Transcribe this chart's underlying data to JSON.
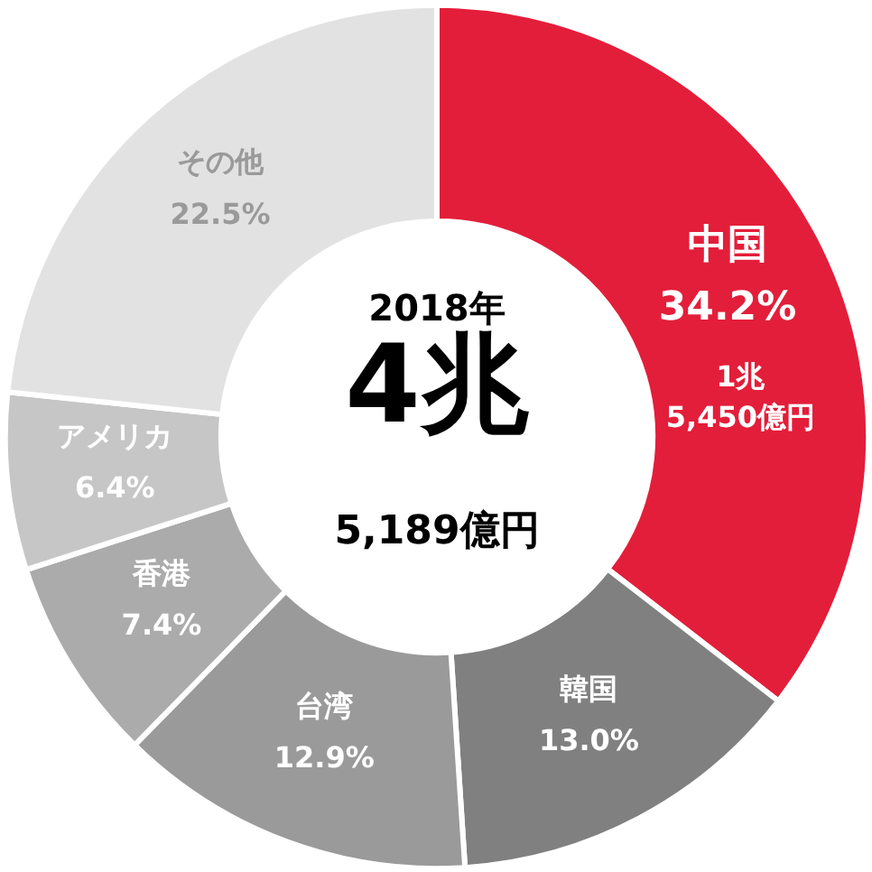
{
  "chart_data": {
    "type": "donut",
    "categories": [
      "中国",
      "韓国",
      "台湾",
      "香港",
      "アメリカ",
      "その他"
    ],
    "values": [
      34.2,
      13.0,
      12.9,
      7.4,
      6.4,
      22.5
    ],
    "value_labels": [
      "34.2%",
      "13.0%",
      "12.9%",
      "7.4%",
      "6.4%",
      "22.5%"
    ],
    "colors": [
      "#e31e3a",
      "#808080",
      "#9a9a9a",
      "#ababab",
      "#c6c6c6",
      "#e2e2e2"
    ],
    "annotations": [
      "2018年",
      "4兆",
      "5,189億円",
      "1兆\n5,450億円"
    ],
    "legend": false
  }
}
